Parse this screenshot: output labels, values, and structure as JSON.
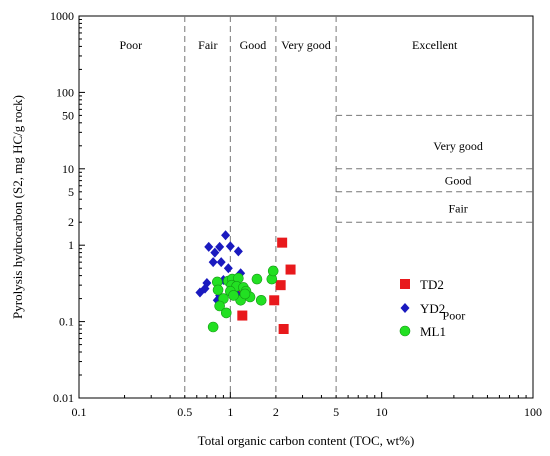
{
  "chart_data": {
    "type": "scatter",
    "x_scale": "log",
    "y_scale": "log",
    "xlim": [
      0.1,
      100
    ],
    "ylim": [
      0.01,
      1000
    ],
    "xlabel": "Total organic carbon content (TOC, wt%)",
    "ylabel": "Pyrolysis hydrocarbon (S2,  mg HC/g rock)",
    "x_ticks": [
      {
        "value": 0.1,
        "label": "0.1"
      },
      {
        "value": 0.5,
        "label": "0.5"
      },
      {
        "value": 1,
        "label": "1"
      },
      {
        "value": 2,
        "label": "2"
      },
      {
        "value": 5,
        "label": "5"
      },
      {
        "value": 10,
        "label": "10"
      },
      {
        "value": 100,
        "label": "100"
      }
    ],
    "y_ticks": [
      {
        "value": 0.01,
        "label": "0.01"
      },
      {
        "value": 0.1,
        "label": "0.1"
      },
      {
        "value": 1,
        "label": "1"
      },
      {
        "value": 2,
        "label": "2"
      },
      {
        "value": 5,
        "label": "5"
      },
      {
        "value": 10,
        "label": "10"
      },
      {
        "value": 50,
        "label": "50"
      },
      {
        "value": 100,
        "label": "100"
      },
      {
        "value": 1000,
        "label": "1000"
      }
    ],
    "vertical_dividers": [
      0.5,
      1,
      2,
      5
    ],
    "horizontal_dividers": [
      2,
      5,
      10,
      50
    ],
    "toc_classes": [
      {
        "label": "Poor",
        "x": 0.22
      },
      {
        "label": "Fair",
        "x": 0.71
      },
      {
        "label": "Good",
        "x": 1.41
      },
      {
        "label": "Very good",
        "x": 3.16
      },
      {
        "label": "Excellent",
        "x": 22.4
      }
    ],
    "s2_classes": [
      {
        "label": "Very good",
        "y": 20
      },
      {
        "label": "Good",
        "y": 7
      },
      {
        "label": "Fair",
        "y": 3
      }
    ],
    "poor_label": {
      "label": "Poor",
      "x": 30,
      "y": 0.12
    },
    "legend_position": "center-right",
    "series": [
      {
        "name": "TD2",
        "marker": "square",
        "color": "#e8191c",
        "points": [
          [
            2.2,
            1.08
          ],
          [
            2.5,
            0.48
          ],
          [
            2.15,
            0.3
          ],
          [
            1.95,
            0.19
          ],
          [
            2.25,
            0.08
          ],
          [
            1.1,
            0.23
          ],
          [
            1.2,
            0.12
          ]
        ]
      },
      {
        "name": "YD2",
        "marker": "diamond",
        "color": "#1a1abf",
        "points": [
          [
            0.93,
            1.35
          ],
          [
            0.72,
            0.95
          ],
          [
            0.85,
            0.95
          ],
          [
            1.0,
            0.97
          ],
          [
            0.79,
            0.8
          ],
          [
            1.13,
            0.83
          ],
          [
            0.77,
            0.6
          ],
          [
            0.87,
            0.6
          ],
          [
            0.97,
            0.5
          ],
          [
            1.17,
            0.43
          ],
          [
            0.9,
            0.35
          ],
          [
            0.7,
            0.32
          ],
          [
            1.04,
            0.32
          ],
          [
            0.68,
            0.27
          ],
          [
            0.63,
            0.24
          ],
          [
            0.85,
            0.22
          ],
          [
            0.82,
            0.19
          ],
          [
            1.1,
            0.23
          ]
        ]
      },
      {
        "name": "ML1",
        "marker": "circle",
        "color": "#22e022",
        "points": [
          [
            0.82,
            0.33
          ],
          [
            0.97,
            0.34
          ],
          [
            1.03,
            0.36
          ],
          [
            1.13,
            0.37
          ],
          [
            1.02,
            0.3
          ],
          [
            1.1,
            0.29
          ],
          [
            1.22,
            0.28
          ],
          [
            0.83,
            0.26
          ],
          [
            1.0,
            0.25
          ],
          [
            1.27,
            0.25
          ],
          [
            1.5,
            0.36
          ],
          [
            1.88,
            0.36
          ],
          [
            1.92,
            0.46
          ],
          [
            0.9,
            0.2
          ],
          [
            1.17,
            0.19
          ],
          [
            1.35,
            0.21
          ],
          [
            1.6,
            0.19
          ],
          [
            0.85,
            0.16
          ],
          [
            0.94,
            0.13
          ],
          [
            0.77,
            0.085
          ],
          [
            1.05,
            0.22
          ],
          [
            1.25,
            0.23
          ]
        ]
      }
    ]
  }
}
